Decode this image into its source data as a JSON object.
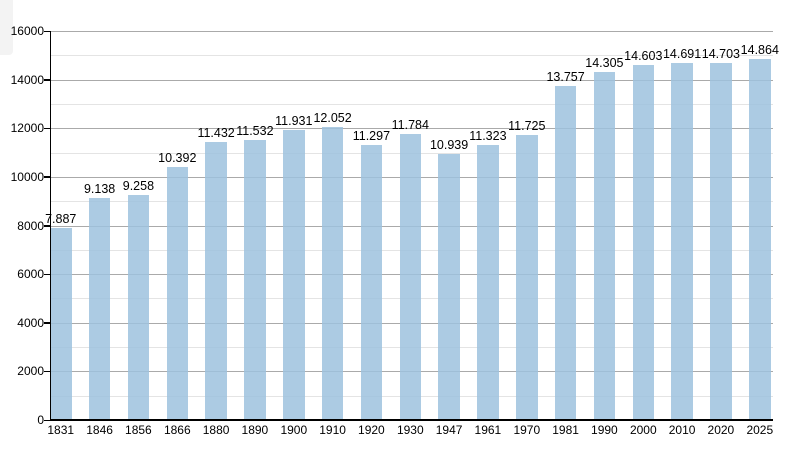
{
  "page": {
    "background": "#ffffff"
  },
  "chart_data": {
    "type": "bar",
    "title": "",
    "xlabel": "",
    "ylabel": "",
    "categories": [
      "1831",
      "1846",
      "1856",
      "1866",
      "1880",
      "1890",
      "1900",
      "1910",
      "1920",
      "1930",
      "1947",
      "1961",
      "1970",
      "1981",
      "1990",
      "2000",
      "2010",
      "2020",
      "2025"
    ],
    "values": [
      7887,
      9138,
      9258,
      10392,
      11432,
      11532,
      11931,
      12052,
      11297,
      11784,
      10939,
      11323,
      11725,
      13757,
      14305,
      14603,
      14691,
      14703,
      14864
    ],
    "value_labels": [
      "7.887",
      "9.138",
      "9.258",
      "10.392",
      "11.432",
      "11.532",
      "11.931",
      "12.052",
      "11.297",
      "11.784",
      "10.939",
      "11.323",
      "11.725",
      "13.757",
      "14.305",
      "14.603",
      "14.691",
      "14.703",
      "14.864"
    ],
    "ylim": [
      0,
      16000
    ],
    "y_major_step": 2000,
    "y_minor_step": 1000,
    "y_tick_labels": [
      "0",
      "2000",
      "4000",
      "6000",
      "8000",
      "10000",
      "12000",
      "14000",
      "16000"
    ],
    "grid": "horizontal major and minor gridlines",
    "legend": "none",
    "colors": {
      "bar_fill": "rgba(157,194,222,0.85)",
      "bar_fill_over_white": "#accbe3",
      "axis": "#000000",
      "major_gridline": "#aaaaaa",
      "minor_gridline": "#e4e4e4",
      "label_text": "#000000"
    }
  }
}
